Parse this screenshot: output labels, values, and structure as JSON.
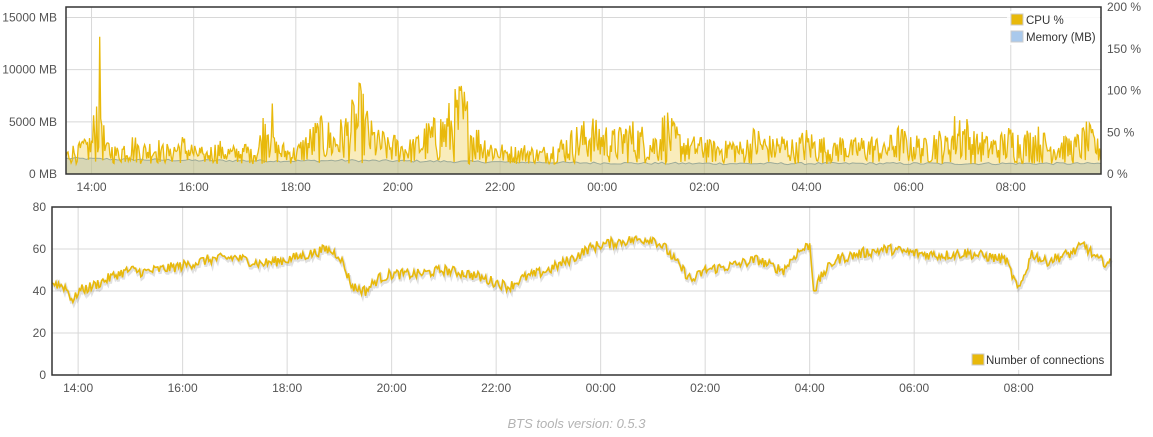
{
  "footer": {
    "version_text": "BTS tools version: 0.5.3"
  },
  "colors": {
    "cpu": "#e8b90b",
    "memory": "#a9c9ec",
    "connections": "#e8b90b",
    "grid": "#d8d8d8",
    "border": "#333333"
  },
  "chart_data": [
    {
      "type": "line",
      "x_ticks": [
        "14:00",
        "16:00",
        "18:00",
        "20:00",
        "22:00",
        "00:00",
        "02:00",
        "04:00",
        "06:00",
        "08:00"
      ],
      "x_range": [
        "13:30",
        "09:46"
      ],
      "y_left": {
        "ticks": [
          "0 MB",
          "5000 MB",
          "10000 MB",
          "15000 MB"
        ],
        "range": [
          0,
          16000
        ]
      },
      "y_right": {
        "ticks": [
          "0 %",
          "50 %",
          "100 %",
          "150 %",
          "200 %"
        ],
        "range": [
          0,
          200
        ]
      },
      "legend": {
        "position": "top-right",
        "entries": [
          "CPU %",
          "Memory (MB)"
        ]
      },
      "grid": true,
      "series": [
        {
          "name": "CPU %",
          "axis": "right",
          "points": [
            [
              "13:30",
              20
            ],
            [
              "13:45",
              35
            ],
            [
              "14:00",
              45
            ],
            [
              "14:05",
              100
            ],
            [
              "14:10",
              170
            ],
            [
              "14:15",
              40
            ],
            [
              "14:30",
              25
            ],
            [
              "14:45",
              45
            ],
            [
              "15:00",
              30
            ],
            [
              "15:15",
              38
            ],
            [
              "15:30",
              28
            ],
            [
              "15:45",
              42
            ],
            [
              "16:00",
              30
            ],
            [
              "16:15",
              22
            ],
            [
              "16:30",
              35
            ],
            [
              "16:45",
              25
            ],
            [
              "17:00",
              32
            ],
            [
              "17:15",
              28
            ],
            [
              "17:30",
              130
            ],
            [
              "17:35",
              35
            ],
            [
              "17:45",
              30
            ],
            [
              "18:00",
              25
            ],
            [
              "18:15",
              50
            ],
            [
              "18:30",
              70
            ],
            [
              "18:45",
              55
            ],
            [
              "19:00",
              75
            ],
            [
              "19:15",
              110
            ],
            [
              "19:30",
              60
            ],
            [
              "19:45",
              45
            ],
            [
              "20:00",
              40
            ],
            [
              "20:15",
              35
            ],
            [
              "20:30",
              55
            ],
            [
              "20:45",
              70
            ],
            [
              "21:00",
              85
            ],
            [
              "21:15",
              120
            ],
            [
              "21:30",
              60
            ],
            [
              "21:45",
              40
            ],
            [
              "22:00",
              30
            ],
            [
              "22:15",
              25
            ],
            [
              "22:30",
              28
            ],
            [
              "22:45",
              22
            ],
            [
              "23:00",
              30
            ],
            [
              "23:15",
              40
            ],
            [
              "23:30",
              55
            ],
            [
              "23:45",
              70
            ],
            [
              "00:00",
              60
            ],
            [
              "00:15",
              50
            ],
            [
              "00:30",
              65
            ],
            [
              "00:45",
              55
            ],
            [
              "01:00",
              45
            ],
            [
              "01:15",
              80
            ],
            [
              "01:30",
              50
            ],
            [
              "01:45",
              40
            ],
            [
              "02:00",
              45
            ],
            [
              "02:15",
              35
            ],
            [
              "02:30",
              42
            ],
            [
              "02:45",
              30
            ],
            [
              "03:00",
              55
            ],
            [
              "03:15",
              40
            ],
            [
              "03:30",
              45
            ],
            [
              "03:45",
              35
            ],
            [
              "04:00",
              50
            ],
            [
              "04:15",
              40
            ],
            [
              "04:30",
              35
            ],
            [
              "04:45",
              45
            ],
            [
              "05:00",
              38
            ],
            [
              "05:15",
              42
            ],
            [
              "05:30",
              35
            ],
            [
              "05:45",
              55
            ],
            [
              "06:00",
              45
            ],
            [
              "06:15",
              40
            ],
            [
              "06:30",
              50
            ],
            [
              "06:45",
              45
            ],
            [
              "07:00",
              85
            ],
            [
              "07:15",
              50
            ],
            [
              "07:30",
              45
            ],
            [
              "07:45",
              40
            ],
            [
              "08:00",
              55
            ],
            [
              "08:15",
              45
            ],
            [
              "08:30",
              60
            ],
            [
              "08:45",
              40
            ],
            [
              "09:00",
              45
            ],
            [
              "09:15",
              38
            ],
            [
              "09:30",
              65
            ],
            [
              "09:46",
              35
            ]
          ]
        },
        {
          "name": "Memory (MB)",
          "axis": "left",
          "points": [
            [
              "13:30",
              1500
            ],
            [
              "14:00",
              1450
            ],
            [
              "16:00",
              1300
            ],
            [
              "18:00",
              1250
            ],
            [
              "19:00",
              1300
            ],
            [
              "20:00",
              1250
            ],
            [
              "22:00",
              1150
            ],
            [
              "23:00",
              1100
            ],
            [
              "00:00",
              1050
            ],
            [
              "02:00",
              1000
            ],
            [
              "04:00",
              1000
            ],
            [
              "06:00",
              1000
            ],
            [
              "08:00",
              1000
            ],
            [
              "09:46",
              1000
            ]
          ]
        }
      ]
    },
    {
      "type": "line",
      "x_ticks": [
        "14:00",
        "16:00",
        "18:00",
        "20:00",
        "22:00",
        "00:00",
        "02:00",
        "04:00",
        "06:00",
        "08:00"
      ],
      "x_range": [
        "13:30",
        "09:46"
      ],
      "y": {
        "ticks": [
          "0",
          "20",
          "40",
          "60",
          "80"
        ],
        "range": [
          0,
          80
        ]
      },
      "legend": {
        "position": "bottom-right",
        "entries": [
          "Number of connections"
        ]
      },
      "grid": true,
      "series": [
        {
          "name": "Number of connections",
          "points": [
            [
              "13:30",
              44
            ],
            [
              "13:45",
              42
            ],
            [
              "13:55",
              35
            ],
            [
              "14:00",
              40
            ],
            [
              "14:15",
              42
            ],
            [
              "14:30",
              45
            ],
            [
              "14:45",
              48
            ],
            [
              "15:00",
              50
            ],
            [
              "15:15",
              49
            ],
            [
              "15:30",
              50
            ],
            [
              "16:00",
              52
            ],
            [
              "16:30",
              55
            ],
            [
              "17:00",
              56
            ],
            [
              "17:30",
              53
            ],
            [
              "18:00",
              55
            ],
            [
              "18:30",
              58
            ],
            [
              "18:45",
              60
            ],
            [
              "19:00",
              57
            ],
            [
              "19:15",
              42
            ],
            [
              "19:30",
              40
            ],
            [
              "19:45",
              46
            ],
            [
              "20:00",
              48
            ],
            [
              "20:30",
              48
            ],
            [
              "21:00",
              50
            ],
            [
              "21:30",
              48
            ],
            [
              "22:00",
              44
            ],
            [
              "22:15",
              42
            ],
            [
              "22:30",
              46
            ],
            [
              "23:00",
              50
            ],
            [
              "23:30",
              56
            ],
            [
              "23:45",
              60
            ],
            [
              "00:00",
              62
            ],
            [
              "00:30",
              64
            ],
            [
              "01:00",
              65
            ],
            [
              "01:15",
              60
            ],
            [
              "01:30",
              52
            ],
            [
              "01:45",
              45
            ],
            [
              "02:00",
              50
            ],
            [
              "02:30",
              52
            ],
            [
              "03:00",
              55
            ],
            [
              "03:15",
              52
            ],
            [
              "03:30",
              50
            ],
            [
              "03:45",
              58
            ],
            [
              "04:00",
              62
            ],
            [
              "04:05",
              40
            ],
            [
              "04:15",
              48
            ],
            [
              "04:30",
              55
            ],
            [
              "05:00",
              58
            ],
            [
              "05:30",
              60
            ],
            [
              "06:00",
              58
            ],
            [
              "06:30",
              57
            ],
            [
              "07:00",
              58
            ],
            [
              "07:30",
              56
            ],
            [
              "07:45",
              55
            ],
            [
              "08:00",
              40
            ],
            [
              "08:15",
              58
            ],
            [
              "08:30",
              54
            ],
            [
              "09:00",
              58
            ],
            [
              "09:15",
              62
            ],
            [
              "09:30",
              55
            ],
            [
              "09:46",
              53
            ]
          ]
        }
      ]
    }
  ]
}
